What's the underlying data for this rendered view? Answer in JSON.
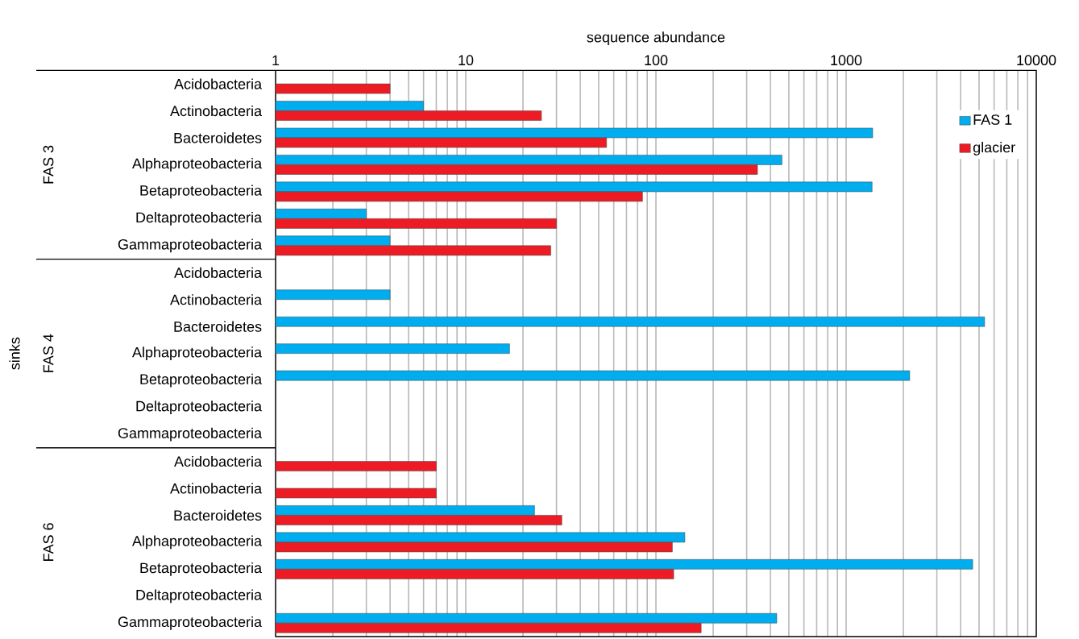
{
  "chart_data": {
    "type": "bar",
    "orientation": "horizontal",
    "log": "x",
    "grid": "x",
    "legend": "top right",
    "xlabel": "sequence abundance",
    "annotations": [
      "sinks",
      "FAS 3",
      "FAS 4",
      "FAS 6"
    ],
    "categories": [
      "Acidobacteria",
      "Actinobacteria",
      "Bacteroidetes",
      "Alphaproteobacteria",
      "Betaproteobacteria",
      "Deltaproteobacteria",
      "Gammaproteobacteria",
      "Acidobacteria",
      "Actinobacteria",
      "Bacteroidetes",
      "Alphaproteobacteria",
      "Betaproteobacteria",
      "Deltaproteobacteria",
      "Gammaproteobacteria",
      "Acidobacteria",
      "Actinobacteria",
      "Bacteroidetes",
      "Alphaproteobacteria",
      "Betaproteobacteria",
      "Deltaproteobacteria",
      "Gammaproteobacteria"
    ],
    "series": [
      {
        "name": "FAS 1",
        "color": "#00aeef",
        "values": [
          null,
          6,
          1380,
          460,
          1370,
          3,
          4,
          null,
          4,
          5350,
          17,
          2160,
          null,
          null,
          null,
          null,
          23,
          142,
          4630,
          null,
          432
        ]
      },
      {
        "name": "glacier",
        "color": "#ed1c24",
        "values": [
          4,
          25,
          55,
          342,
          85,
          30,
          28,
          null,
          null,
          null,
          null,
          null,
          null,
          null,
          7,
          7,
          32,
          122,
          124,
          null,
          173
        ]
      }
    ],
    "xlim": [
      1,
      10000
    ],
    "xticks": [
      1,
      10,
      100,
      1000,
      10000
    ]
  }
}
